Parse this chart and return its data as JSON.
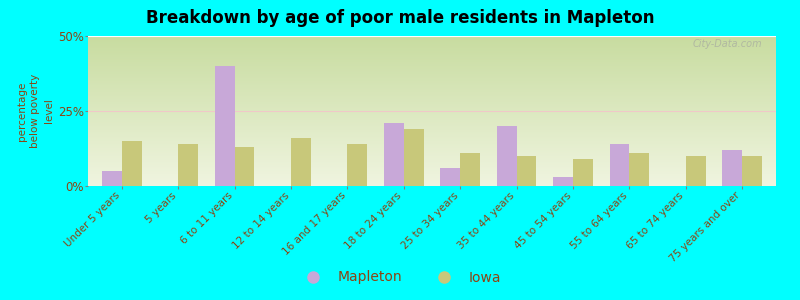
{
  "title": "Breakdown by age of poor male residents in Mapleton",
  "categories": [
    "Under 5 years",
    "5 years",
    "6 to 11 years",
    "12 to 14 years",
    "16 and 17 years",
    "18 to 24 years",
    "25 to 34 years",
    "35 to 44 years",
    "45 to 54 years",
    "55 to 64 years",
    "65 to 74 years",
    "75 years and over"
  ],
  "mapleton_values": [
    5,
    0,
    40,
    0,
    0,
    21,
    6,
    20,
    3,
    14,
    0,
    12
  ],
  "iowa_values": [
    15,
    14,
    13,
    16,
    14,
    19,
    11,
    10,
    9,
    11,
    10,
    10
  ],
  "mapleton_color": "#c8a8d8",
  "iowa_color": "#c8c87a",
  "background_color": "#00ffff",
  "grad_top": "#c8dca0",
  "grad_bottom": "#f0f5e0",
  "ylabel": "percentage\nbelow poverty\nlevel",
  "ylim": [
    0,
    50
  ],
  "ytick_positions": [
    0,
    25,
    50
  ],
  "ytick_labels": [
    "0%",
    "25%",
    "50%"
  ],
  "bar_width": 0.35,
  "watermark": "City-Data.com",
  "label_color": "#8B4513",
  "grid_color": "#e8e0c8",
  "pink_line_color": "#f0c8c8"
}
